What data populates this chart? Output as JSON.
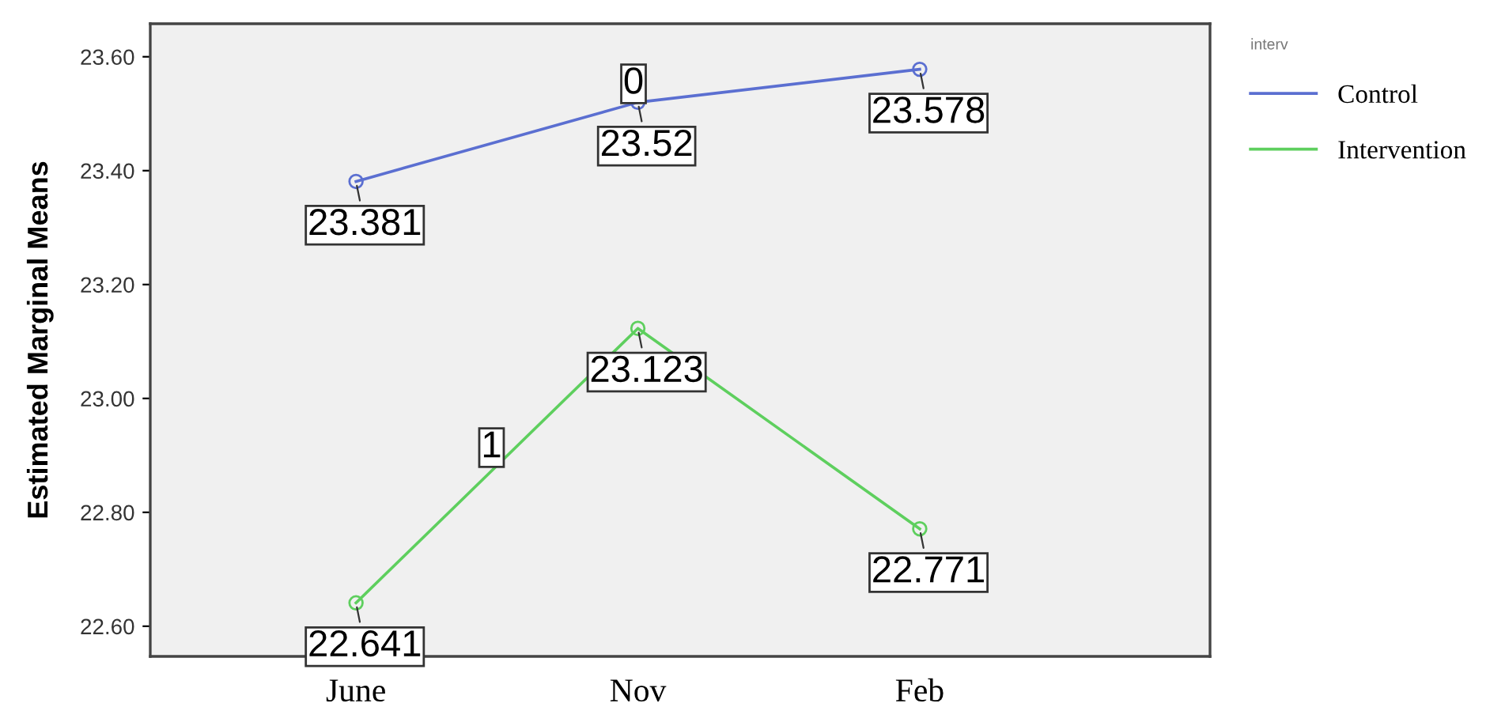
{
  "chart_data": {
    "type": "line",
    "ylabel": "Estimated Marginal Means",
    "legend_title": "interv",
    "categories": [
      "June",
      "Nov",
      "Feb"
    ],
    "series": [
      {
        "name": "Control",
        "color": "#5b6fd1",
        "values": [
          23.381,
          23.52,
          23.578
        ]
      },
      {
        "name": "Intervention",
        "color": "#5ecf5e",
        "values": [
          22.641,
          23.123,
          22.771
        ]
      }
    ],
    "ylim": [
      22.547,
      23.658
    ],
    "yticks": [
      {
        "value": 22.6,
        "label": "22.60"
      },
      {
        "value": 22.8,
        "label": "22.80"
      },
      {
        "value": 23.0,
        "label": "23.00"
      },
      {
        "value": 23.2,
        "label": "23.20"
      },
      {
        "value": 23.4,
        "label": "23.40"
      },
      {
        "value": 23.6,
        "label": "23.60"
      }
    ],
    "annotations": [
      "0",
      "1"
    ],
    "data_labels": true,
    "marker": "circle",
    "line_style": "solid",
    "legend": "top right",
    "grid": false
  }
}
